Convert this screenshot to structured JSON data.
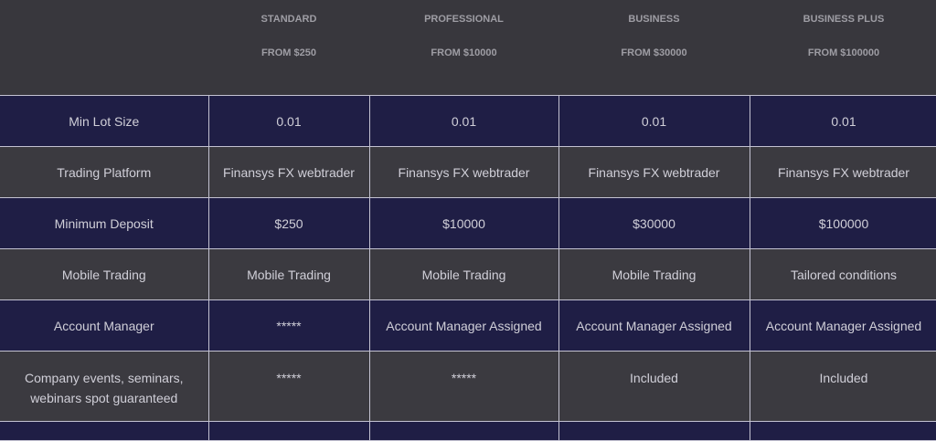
{
  "plans": [
    {
      "name": "STANDARD",
      "price": "FROM $250"
    },
    {
      "name": "PROFESSIONAL",
      "price": "FROM $10000"
    },
    {
      "name": "BUSINESS",
      "price": "FROM $30000"
    },
    {
      "name": "BUSINESS PLUS",
      "price": "FROM $100000"
    }
  ],
  "rows": [
    {
      "label": "Min Lot Size",
      "values": [
        "0.01",
        "0.01",
        "0.01",
        "0.01"
      ]
    },
    {
      "label": "Trading Platform",
      "values": [
        "Finansys FX webtrader",
        "Finansys FX webtrader",
        "Finansys FX webtrader",
        "Finansys FX webtrader"
      ]
    },
    {
      "label": "Minimum Deposit",
      "values": [
        "$250",
        "$10000",
        "$30000",
        "$100000"
      ]
    },
    {
      "label": "Mobile Trading",
      "values": [
        "Mobile Trading",
        "Mobile Trading",
        "Mobile Trading",
        "Tailored conditions"
      ]
    },
    {
      "label": "Account Manager",
      "values": [
        "*****",
        "Account Manager Assigned",
        "Account Manager Assigned",
        "Account Manager Assigned"
      ]
    },
    {
      "label": "Company events, seminars, webinars spot guaranteed",
      "values": [
        "*****",
        "*****",
        "Included",
        "Included"
      ]
    }
  ],
  "colors": {
    "background": "#38373d",
    "navy_row": "#1f1e45",
    "border": "#c4c3d2"
  }
}
